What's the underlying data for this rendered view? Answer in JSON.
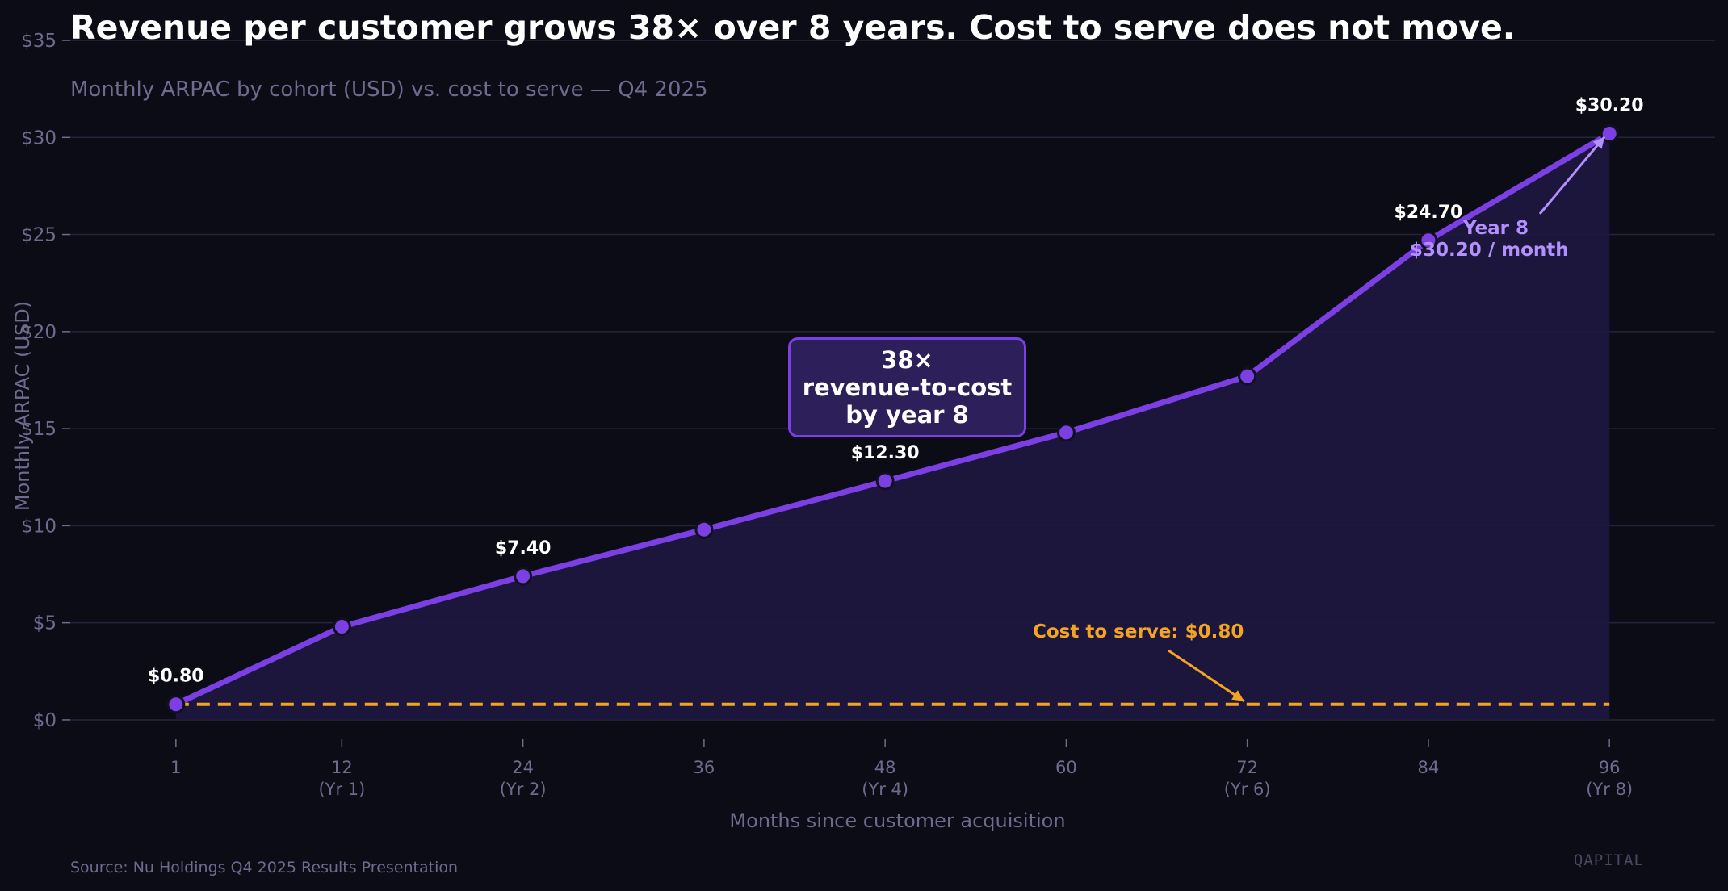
{
  "header": {
    "title": "Revenue per customer grows 38× over 8 years. Cost to serve does not move.",
    "subtitle": "Monthly ARPAC by cohort (USD) vs. cost to serve — Q4 2025"
  },
  "footer": {
    "source": "Source: Nu Holdings Q4 2025 Results Presentation",
    "brand": "QAPITAL"
  },
  "callout": {
    "line1": "38×",
    "line2": "revenue-to-cost",
    "line3": "by year 8"
  },
  "annotations": {
    "year8_line1": "Year 8",
    "year8_line2": "$30.20 / month",
    "cost_label": "Cost to serve: $0.80"
  },
  "colors": {
    "background": "#0c0c17",
    "series": "#7b3fe4",
    "area": "#1f1740",
    "cost": "#f3a423",
    "grid": "#26243a",
    "muted_text": "#6f6a8e"
  },
  "chart_data": {
    "type": "line",
    "xlabel": "Months since customer acquisition",
    "ylabel": "Monthly ARPAC (USD)",
    "xlim": [
      -6,
      103
    ],
    "ylim": [
      -1,
      35
    ],
    "x_ticks": [
      {
        "value": 1,
        "label": "1",
        "sub": ""
      },
      {
        "value": 12,
        "label": "12",
        "sub": "(Yr 1)"
      },
      {
        "value": 24,
        "label": "24",
        "sub": "(Yr 2)"
      },
      {
        "value": 36,
        "label": "36",
        "sub": ""
      },
      {
        "value": 48,
        "label": "48",
        "sub": "(Yr 4)"
      },
      {
        "value": 60,
        "label": "60",
        "sub": ""
      },
      {
        "value": 72,
        "label": "72",
        "sub": "(Yr 6)"
      },
      {
        "value": 84,
        "label": "84",
        "sub": ""
      },
      {
        "value": 96,
        "label": "96",
        "sub": "(Yr 8)"
      }
    ],
    "y_ticks": [
      {
        "value": 0,
        "label": "$0"
      },
      {
        "value": 5,
        "label": "$5"
      },
      {
        "value": 10,
        "label": "$10"
      },
      {
        "value": 15,
        "label": "$15"
      },
      {
        "value": 20,
        "label": "$20"
      },
      {
        "value": 25,
        "label": "$25"
      },
      {
        "value": 30,
        "label": "$30"
      },
      {
        "value": 35,
        "label": "$35"
      }
    ],
    "series": [
      {
        "name": "ARPAC",
        "x": [
          1,
          12,
          24,
          36,
          48,
          60,
          72,
          84,
          96
        ],
        "values": [
          0.8,
          4.8,
          7.4,
          9.8,
          12.3,
          14.8,
          17.7,
          24.7,
          30.2
        ]
      }
    ],
    "data_labels": [
      {
        "x": 1,
        "y": 0.8,
        "text": "$0.80"
      },
      {
        "x": 24,
        "y": 7.4,
        "text": "$7.40"
      },
      {
        "x": 48,
        "y": 12.3,
        "text": "$12.30"
      },
      {
        "x": 84,
        "y": 24.7,
        "text": "$24.70"
      },
      {
        "x": 96,
        "y": 30.2,
        "text": "$30.20"
      }
    ],
    "reference_line": {
      "name": "Cost to serve",
      "value": 0.8,
      "x_range": [
        1,
        96
      ]
    }
  }
}
